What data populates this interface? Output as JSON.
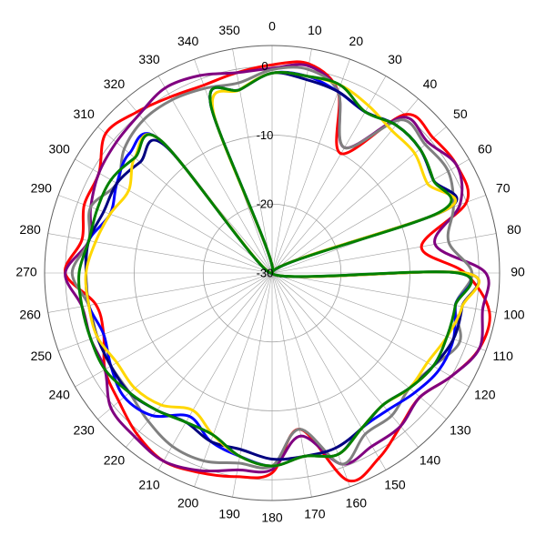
{
  "chart_data": {
    "type": "line",
    "subtype": "polar",
    "title": "",
    "angle_unit": "degrees",
    "angle_direction": "clockwise",
    "zero_at": "top",
    "angle_ticks": [
      0,
      10,
      20,
      30,
      40,
      50,
      60,
      70,
      80,
      90,
      100,
      110,
      120,
      130,
      140,
      150,
      160,
      170,
      180,
      190,
      200,
      210,
      220,
      230,
      240,
      250,
      260,
      270,
      280,
      290,
      300,
      310,
      320,
      330,
      340,
      350
    ],
    "angle_tick_labels": [
      "0",
      "10",
      "20",
      "30",
      "40",
      "50",
      "60",
      "70",
      "80",
      "90",
      "100",
      "110",
      "120",
      "130",
      "140",
      "150",
      "160",
      "170",
      "180",
      "190",
      "200",
      "210",
      "220",
      "230",
      "240",
      "250",
      "260",
      "270",
      "280",
      "290",
      "300",
      "310",
      "320",
      "330",
      "340",
      "350"
    ],
    "radial_range": [
      -30,
      3
    ],
    "radial_ticks": [
      0,
      -10,
      -20,
      -30
    ],
    "radial_tick_labels": [
      "0",
      "-10",
      "-20",
      "-30"
    ],
    "grid": true,
    "legend": "none",
    "angles": [
      0,
      10,
      20,
      30,
      40,
      50,
      60,
      70,
      80,
      90,
      100,
      110,
      120,
      130,
      140,
      150,
      160,
      170,
      180,
      190,
      200,
      210,
      220,
      230,
      240,
      250,
      260,
      270,
      280,
      290,
      300,
      310,
      320,
      330,
      340,
      350
    ],
    "series": [
      {
        "color": "#ff0000",
        "values": [
          0.2,
          0.8,
          -2,
          -10,
          0,
          0.5,
          1,
          0,
          -8,
          -2,
          2,
          2,
          0,
          -2,
          -1,
          1,
          2,
          -7,
          -1,
          0,
          0.8,
          1.5,
          0.5,
          -1,
          -2,
          -4,
          -4,
          0,
          -2,
          -1,
          -1,
          1.5,
          0.5,
          -0.5,
          -1,
          -0.5
        ]
      },
      {
        "color": "#800080",
        "values": [
          -0.3,
          0.5,
          -2,
          -9,
          -0.5,
          -0.5,
          1,
          -1,
          -6,
          1,
          1,
          2,
          0,
          -2,
          -1,
          -1,
          -0.5,
          -6,
          -1.5,
          -1,
          0.5,
          1.5,
          1,
          0.5,
          -2,
          -2,
          -2,
          0,
          -3,
          -2,
          -1,
          -0.5,
          0,
          1,
          0.5,
          -0.5
        ]
      },
      {
        "color": "#808080",
        "values": [
          -0.5,
          0,
          -2,
          -9,
          -1,
          -1,
          -0.5,
          -2,
          -4,
          -1,
          -3,
          -1,
          -3,
          -4,
          -3,
          -3,
          -0.5,
          -7,
          -2,
          -2,
          -1,
          -1,
          -2,
          -3,
          -3,
          -3,
          -3,
          -1,
          -3,
          -2,
          -4,
          -2,
          -1,
          -1,
          -1.5,
          -2
        ]
      },
      {
        "color": "#0000ff",
        "values": [
          -1,
          -1,
          -2,
          -3,
          -2,
          -2,
          -3,
          -3,
          -30,
          -3,
          -3,
          -2,
          -2,
          -3,
          -4,
          -4,
          -2,
          -3,
          -2,
          -3,
          -4,
          -6,
          -3,
          -2,
          -3,
          -4,
          -3,
          -3,
          -3,
          -5,
          -4,
          -3,
          -5,
          -30,
          -4,
          -3
        ]
      },
      {
        "color": "#000080",
        "values": [
          -1,
          -1.5,
          -2,
          -3,
          -2,
          -2,
          -3,
          -3,
          -30,
          -2,
          -2,
          -2,
          -3,
          -4,
          -5,
          -4,
          -3,
          -3,
          -3,
          -4,
          -4,
          -5,
          -4,
          -3,
          -3,
          -3,
          -3,
          -3,
          -3,
          -4,
          -4,
          -5,
          -6,
          -30,
          -4,
          -3
        ]
      },
      {
        "color": "#ffd700",
        "values": [
          -1,
          -1,
          -1,
          -2,
          -3,
          -3,
          -4,
          -3,
          -30,
          -2,
          -2,
          -3,
          -4,
          -4,
          -5,
          -4,
          -2,
          -3,
          -2,
          -3,
          -5,
          -7,
          -5,
          -4,
          -4,
          -3,
          -3,
          -3,
          -4,
          -5,
          -6,
          -4,
          -5,
          -30,
          -5,
          -3
        ]
      },
      {
        "color": "#008000",
        "values": [
          -1,
          -1,
          -1,
          -3,
          -2,
          -2,
          -3,
          -4,
          -30,
          -3,
          -3,
          -3,
          -3,
          -4,
          -5,
          -4,
          -2,
          -3,
          -2,
          -3,
          -5,
          -5,
          -4,
          -3,
          -2,
          -2,
          -2,
          -2,
          -3,
          -3,
          -3,
          -4,
          -5,
          -30,
          -4,
          -3
        ]
      }
    ]
  }
}
